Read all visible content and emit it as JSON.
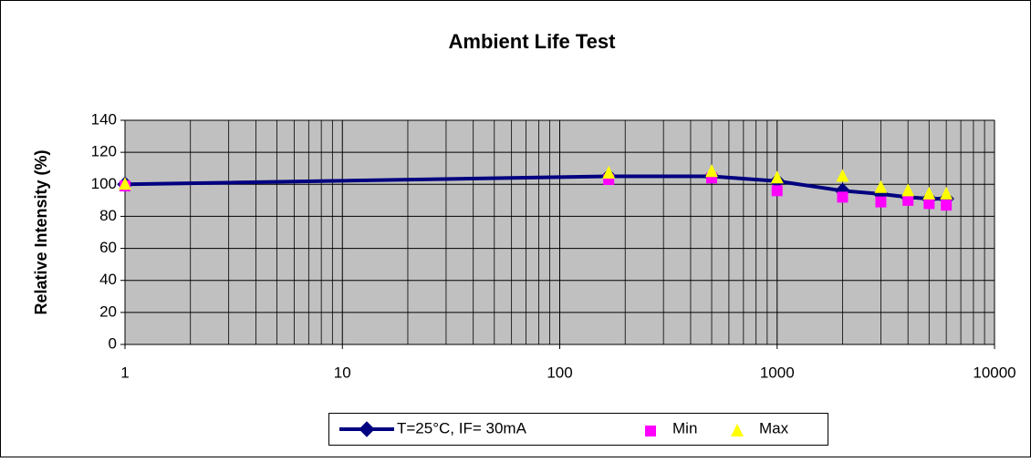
{
  "chart_data": {
    "type": "line",
    "title": "Ambient Life Test",
    "y_label": "Relative Intensity (%)",
    "x": [
      1,
      168,
      500,
      1000,
      2000,
      3000,
      4000,
      5000,
      6000
    ],
    "series": [
      {
        "name": "T=25°C, IF= 30mA",
        "color": "#000080",
        "marker": "diamond",
        "line": true,
        "values": [
          100,
          105,
          105,
          102,
          96,
          94,
          92,
          91,
          91
        ]
      },
      {
        "name": "Min",
        "color": "#ff00ff",
        "marker": "square",
        "line": false,
        "values": [
          99,
          103,
          104,
          96,
          92,
          89,
          90,
          88,
          87
        ]
      },
      {
        "name": "Max",
        "color": "#ffff00",
        "marker": "triangle",
        "line": false,
        "values": [
          100,
          107,
          108,
          104,
          105,
          98,
          96,
          94,
          94
        ]
      }
    ],
    "xscale": "log",
    "xlim": [
      1,
      10000
    ],
    "xticks": [
      1,
      10,
      100,
      1000,
      10000
    ],
    "ylim": [
      0,
      140
    ],
    "yticks": [
      0,
      20,
      40,
      60,
      80,
      100,
      120,
      140
    ],
    "grid": true,
    "legend": "bottom"
  }
}
